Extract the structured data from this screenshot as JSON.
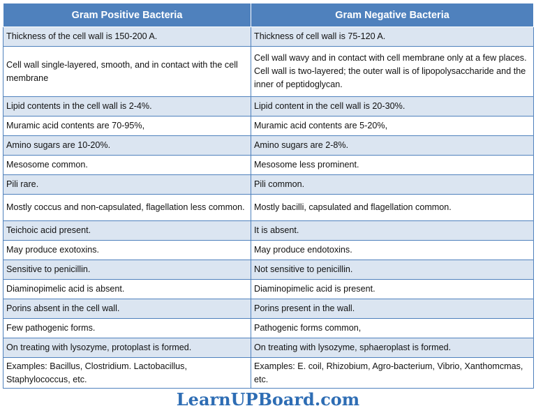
{
  "table": {
    "headers": [
      "Gram Positive Bacteria",
      "Gram Negative Bacteria"
    ],
    "rows": [
      {
        "positive": "Thickness of the cell wall is 150-200 A.",
        "negative": "Thickness of cell wall is 75-120 A."
      },
      {
        "positive": "Cell wall single-layered, smooth, and in contact with the cell membrane",
        "negative": "Cell wall wavy and in contact with cell membrane only at a few places. Cell wall is two-layered; the outer wall is of lipopolysaccharide and the inner of peptidoglycan."
      },
      {
        "positive": "Lipid contents in the cell wall is 2-4%.",
        "negative": "Lipid content in the cell wall is 20-30%."
      },
      {
        "positive": "Muramic acid contents are 70-95%,",
        "negative": "Muramic acid contents are 5-20%,"
      },
      {
        "positive": "Amino sugars are 10-20%.",
        "negative": "Amino sugars are 2-8%."
      },
      {
        "positive": "Mesosome common.",
        "negative": "Mesosome less prominent."
      },
      {
        "positive": "Pili rare.",
        "negative": "Pili common."
      },
      {
        "positive": "Mostly coccus and non-capsulated, flagellation less common.",
        "negative": "Mostly bacilli, capsulated and flagellation common."
      },
      {
        "positive": "Teichoic acid present.",
        "negative": "It is absent."
      },
      {
        "positive": "May produce exotoxins.",
        "negative": "May produce endotoxins."
      },
      {
        "positive": "Sensitive to penicillin.",
        "negative": "Not sensitive to penicillin."
      },
      {
        "positive": "Diaminopimelic acid is absent.",
        "negative": "Diaminopimelic acid is present."
      },
      {
        "positive": "Porins absent in the cell wall.",
        "negative": "Porins present in the wall."
      },
      {
        "positive": "Few pathogenic forms.",
        "negative": "Pathogenic forms common,"
      },
      {
        "positive": "On treating with lysozyme, protoplast is formed.",
        "negative": "On treating with lysozyme, sphaeroplast is formed."
      },
      {
        "positive": "Examples: Bacillus, Clostridium. Lactobacillus, Staphylococcus, etc.",
        "negative": "Examples: E. coil, Rhizobium, Agro-bacterium, Vibrio, Xanthomcmas, etc."
      }
    ]
  },
  "footer": {
    "watermark": "LearnUPBoard.com"
  },
  "colors": {
    "header_bg": "#4f81bd",
    "row_alt_bg": "#dbe5f1",
    "watermark": "#2e6db4"
  }
}
